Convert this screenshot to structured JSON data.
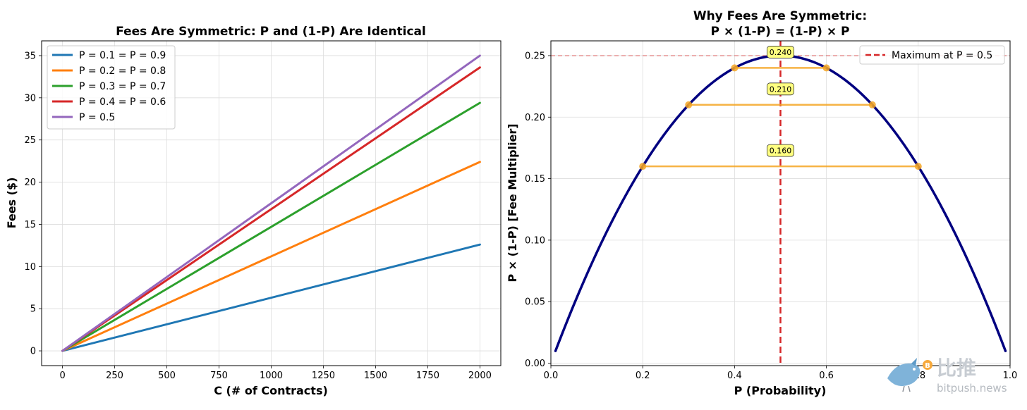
{
  "chart_data": [
    {
      "type": "line",
      "title": "Fees Are Symmetric: P and (1-P) Are Identical",
      "xlabel": "C (# of Contracts)",
      "ylabel": "Fees ($)",
      "xlim": [
        -100,
        2100
      ],
      "ylim": [
        -1.75,
        36.75
      ],
      "xticks": [
        0,
        250,
        500,
        750,
        1000,
        1250,
        1500,
        1750,
        2000
      ],
      "yticks": [
        0,
        5,
        10,
        15,
        20,
        25,
        30,
        35
      ],
      "grid": true,
      "legend_position": "upper-left",
      "x": [
        0,
        2000
      ],
      "series": [
        {
          "name": "P = 0.1 = P = 0.9",
          "color": "#1f77b4",
          "values": [
            0,
            12.6
          ]
        },
        {
          "name": "P = 0.2 = P = 0.8",
          "color": "#ff7f0e",
          "values": [
            0,
            22.4
          ]
        },
        {
          "name": "P = 0.3 = P = 0.7",
          "color": "#2ca02c",
          "values": [
            0,
            29.4
          ]
        },
        {
          "name": "P = 0.4 = P = 0.6",
          "color": "#d62728",
          "values": [
            0,
            33.6
          ]
        },
        {
          "name": "P = 0.5",
          "color": "#9467bd",
          "values": [
            0,
            35.0
          ]
        }
      ]
    },
    {
      "type": "line",
      "title": "Why Fees Are Symmetric:",
      "title_line2": "P × (1-P) = (1-P) × P",
      "xlabel": "P (Probability)",
      "ylabel": "P × (1-P) [Fee Multiplier]",
      "xlim": [
        0.0,
        1.0
      ],
      "ylim": [
        -0.002,
        0.262
      ],
      "xticks": [
        0.0,
        0.2,
        0.4,
        0.6,
        0.8,
        1.0
      ],
      "yticks": [
        0.0,
        0.05,
        0.1,
        0.15,
        0.2,
        0.25
      ],
      "grid": true,
      "legend_position": "upper-right",
      "curve": {
        "function": "p*(1-p)",
        "p_range": [
          0.01,
          0.99
        ],
        "color": "#000080"
      },
      "max_line": {
        "x": 0.5,
        "label": "Maximum at P = 0.5",
        "color": "#d62728"
      },
      "ref_line": {
        "y": 0.25,
        "color": "#d62728"
      },
      "pairs": [
        {
          "p1": 0.4,
          "p2": 0.6,
          "value": 0.24,
          "label": "0.240"
        },
        {
          "p1": 0.3,
          "p2": 0.7,
          "value": 0.21,
          "label": "0.210"
        },
        {
          "p1": 0.2,
          "p2": 0.8,
          "value": 0.16,
          "label": "0.160"
        }
      ],
      "pair_color": "#f5a623",
      "annotation_fill": "#ffff80"
    }
  ],
  "watermark": {
    "cn": "比推",
    "en": "bitpush.news"
  }
}
